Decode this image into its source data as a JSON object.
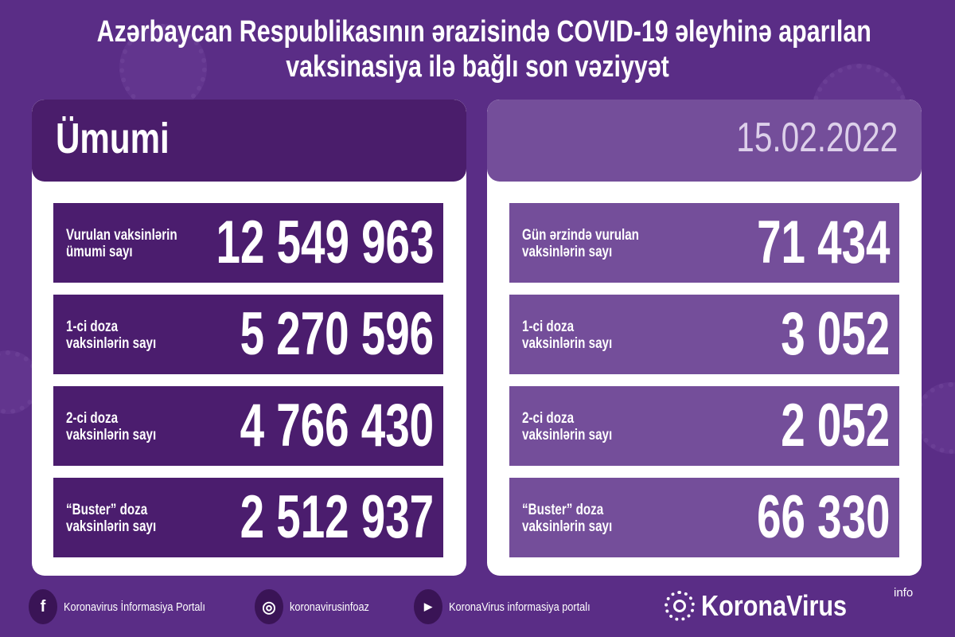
{
  "title": {
    "line1": "Azərbaycan Respublikasının ərazisində COVID-19 əleyhinə aparılan",
    "line2": "vaksinasiya ilə bağlı son vəziyyət"
  },
  "left": {
    "header": "Ümumi",
    "rows": [
      {
        "label1": "Vurulan vaksinlərin",
        "label2": "ümumi sayı",
        "value": "12 549 963"
      },
      {
        "label1": "1-ci doza",
        "label2": "vaksinlərin sayı",
        "value": "5 270 596"
      },
      {
        "label1": "2-ci doza",
        "label2": "vaksinlərin sayı",
        "value": "4 766 430"
      },
      {
        "label1": "“Buster” doza",
        "label2": "vaksinlərin sayı",
        "value": "2 512 937"
      }
    ]
  },
  "right": {
    "header": "15.02.2022",
    "rows": [
      {
        "label1": "Gün ərzində vurulan",
        "label2": "vaksinlərin sayı",
        "value": "71 434"
      },
      {
        "label1": "1-ci doza",
        "label2": "vaksinlərin sayı",
        "value": "3 052"
      },
      {
        "label1": "2-ci doza",
        "label2": "vaksinlərin sayı",
        "value": "2 052"
      },
      {
        "label1": "“Buster” doza",
        "label2": "vaksinlərin sayı",
        "value": "66 330"
      }
    ]
  },
  "footer": {
    "facebook": "Koronavirus İnformasiya Portalı",
    "instagram": "koronavirusinfoaz",
    "youtube": "KoronaVirus informasiya portalı",
    "logo": "KoronaVirus",
    "logo_sup": "info"
  },
  "colors": {
    "background": "#5a2d86",
    "left_rows": "#4b1d6e",
    "right_rows": "#744e9a"
  }
}
